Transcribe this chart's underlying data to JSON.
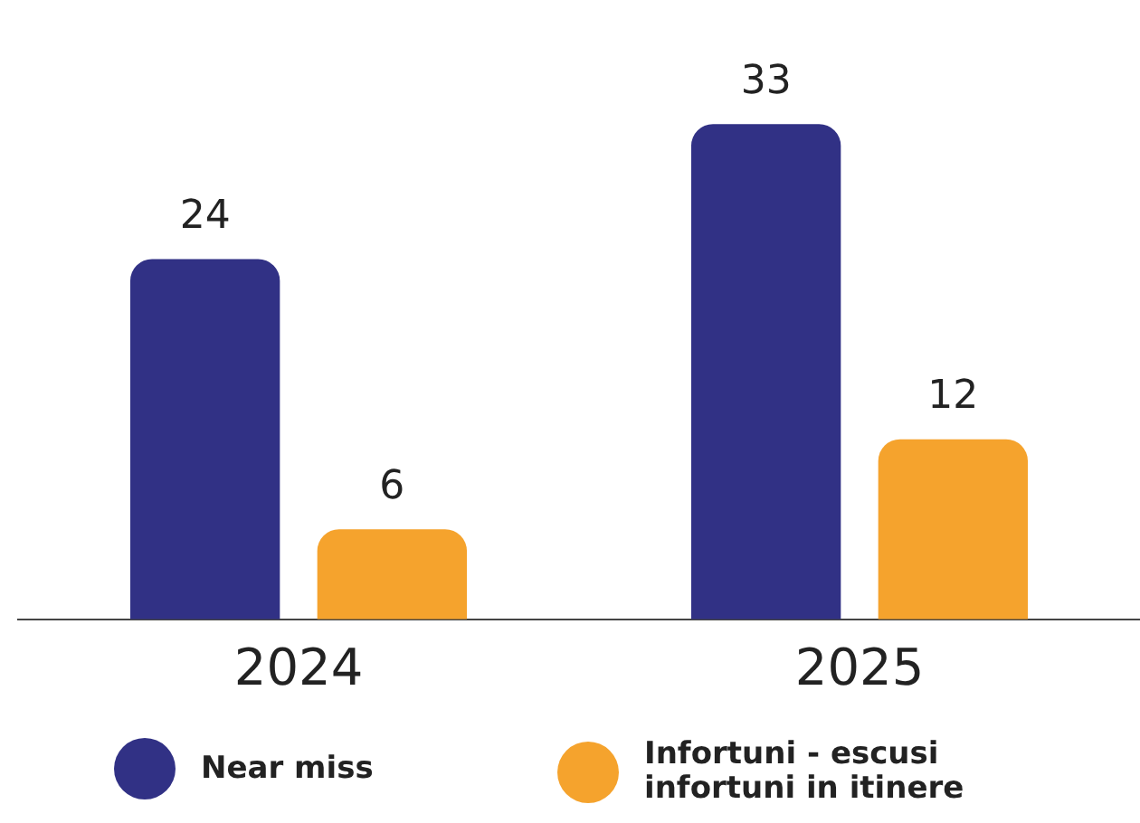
{
  "chart_data": {
    "type": "bar",
    "categories": [
      "2024",
      "2025"
    ],
    "series": [
      {
        "name": "Near miss",
        "color": "#313185",
        "values": [
          24,
          33
        ]
      },
      {
        "name": "Infortuni - escusi infortuni in itinere",
        "color": "#f5a32d",
        "values": [
          6,
          12
        ]
      }
    ],
    "data_labels": true,
    "grid": false,
    "legend": "bottom",
    "tick_labels": "x"
  }
}
